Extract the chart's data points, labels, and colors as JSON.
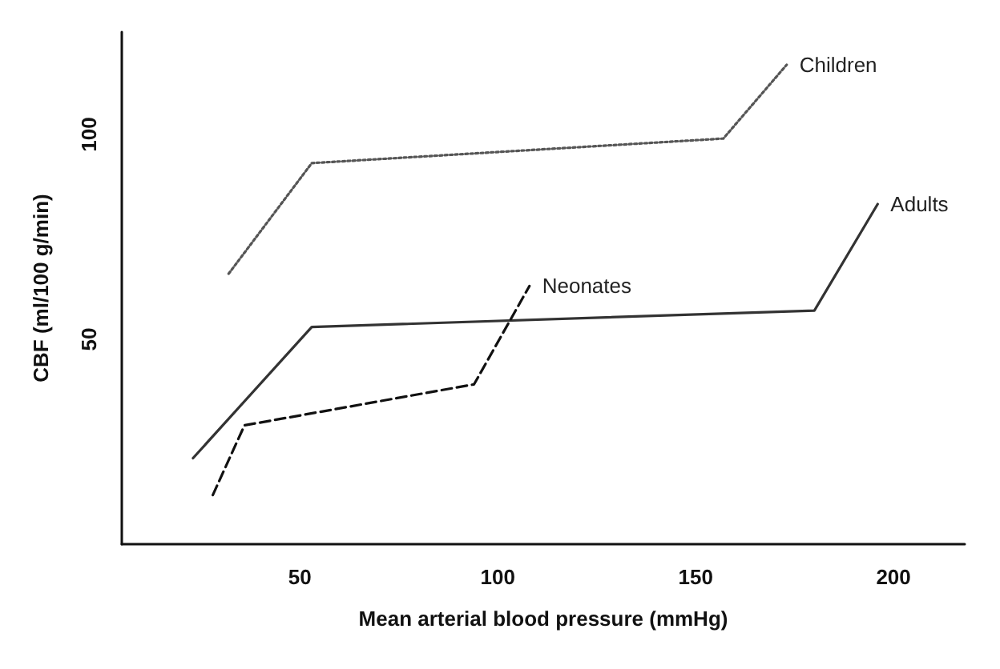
{
  "chart_data": {
    "type": "line",
    "xlabel": "Mean arterial blood pressure (mmHg)",
    "ylabel": "CBF (ml/100 g/min)",
    "xlim": [
      5,
      218
    ],
    "ylim": [
      0,
      125
    ],
    "xticks": [
      50,
      100,
      150,
      200
    ],
    "yticks": [
      50,
      100
    ],
    "grid": false,
    "marker": "none",
    "series": [
      {
        "name": "Children",
        "color": "#555555",
        "line_style": "dotted",
        "x": [
          32,
          53,
          157,
          173
        ],
        "values": [
          66,
          93,
          99,
          117
        ]
      },
      {
        "name": "Adults",
        "color": "#333333",
        "line_style": "solid",
        "x": [
          23,
          53,
          180,
          196
        ],
        "values": [
          21,
          53,
          57,
          83
        ]
      },
      {
        "name": "Neonates",
        "color": "#111111",
        "line_style": "dashed",
        "x": [
          28,
          36,
          94,
          108
        ],
        "values": [
          12,
          29,
          39,
          63
        ]
      }
    ]
  }
}
